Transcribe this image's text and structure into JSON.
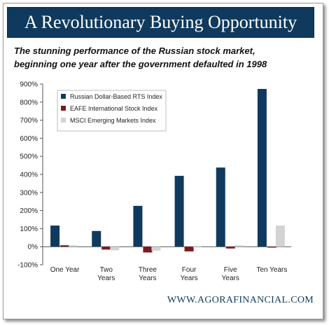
{
  "header": {
    "title": "A Revolutionary Buying Opportunity",
    "subtitle_line1": "The stunning performance of the Russian stock market,",
    "subtitle_line2": "beginning one year after the government defaulted in 1998"
  },
  "footer": {
    "website": "WWW.AGORAFINANCIAL.COM"
  },
  "chart_data": {
    "type": "bar",
    "categories": [
      [
        "One Year"
      ],
      [
        "Two",
        "Years"
      ],
      [
        "Three",
        "Years"
      ],
      [
        "Four",
        "Years"
      ],
      [
        "Five",
        "Years"
      ],
      [
        "Ten Years"
      ]
    ],
    "series": [
      {
        "name": "Russian Dollar-Based RTS Index",
        "color": "#0f3a5e",
        "values": [
          117,
          87,
          226,
          392,
          438,
          873
        ]
      },
      {
        "name": "EAFE International Stock Index",
        "color": "#7a1a22",
        "values": [
          8,
          -16,
          -32,
          -26,
          -10,
          -5
        ]
      },
      {
        "name": "MSCI Emerging Markets Index",
        "color": "#d3d3d3",
        "values": [
          8,
          -20,
          -22,
          -4,
          8,
          117
        ]
      }
    ],
    "yticks": [
      "900%",
      "800%",
      "700%",
      "600%",
      "500%",
      "400%",
      "300%",
      "200%",
      "100%",
      "0%",
      "-100%"
    ],
    "ylim": [
      -100,
      900
    ],
    "legend_position": "top-left",
    "grid": false
  }
}
